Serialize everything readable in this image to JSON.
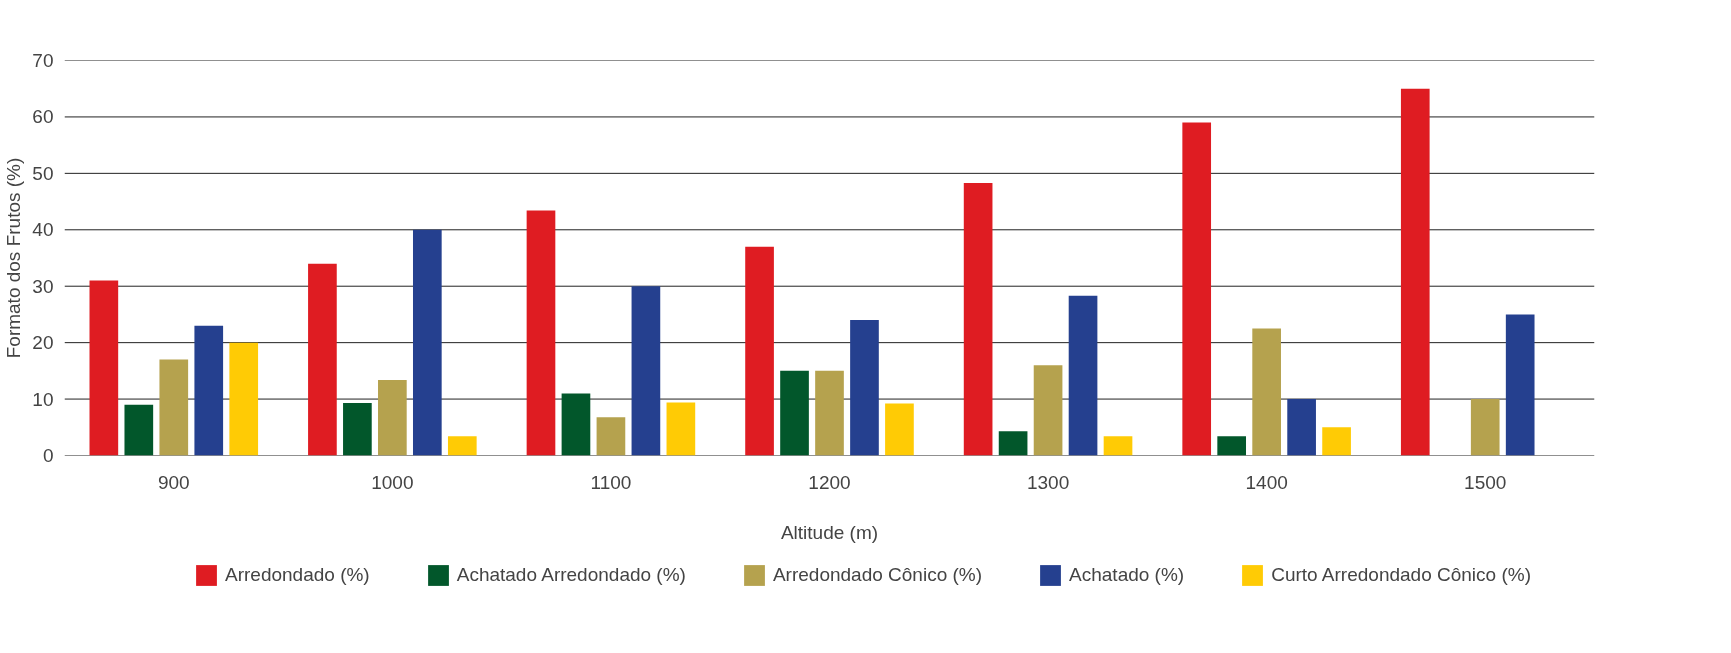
{
  "chart_data": {
    "type": "bar",
    "xlabel": "Altitude (m)",
    "ylabel": "Formato dos Frutos (%)",
    "categories": [
      "900",
      "1000",
      "1100",
      "1200",
      "1300",
      "1400",
      "1500"
    ],
    "series": [
      {
        "name": "Arredondado (%)",
        "color": "#df1c22",
        "values": [
          31,
          34,
          43.4,
          37,
          48.3,
          59,
          65
        ]
      },
      {
        "name": "Achatado Arredondado (%)",
        "color": "#02572b",
        "values": [
          9,
          9.3,
          11,
          15,
          4.3,
          3.4,
          null
        ]
      },
      {
        "name": "Arredondado Cônico (%)",
        "color": "#b5a24e",
        "values": [
          17,
          13.4,
          6.8,
          15,
          16,
          22.5,
          10
        ]
      },
      {
        "name": "Achatado (%)",
        "color": "#25408f",
        "values": [
          23,
          40,
          30,
          24,
          28.3,
          10,
          25
        ]
      },
      {
        "name": "Curto Arredondado Cônico (%)",
        "color": "#ffcb05",
        "values": [
          20,
          3.4,
          9.4,
          9.2,
          3.4,
          5,
          null
        ]
      }
    ],
    "ylim": [
      0,
      70
    ],
    "yticks": [
      0,
      10,
      20,
      30,
      40,
      50,
      60,
      70
    ],
    "grid": "y",
    "legend": "bottom"
  }
}
